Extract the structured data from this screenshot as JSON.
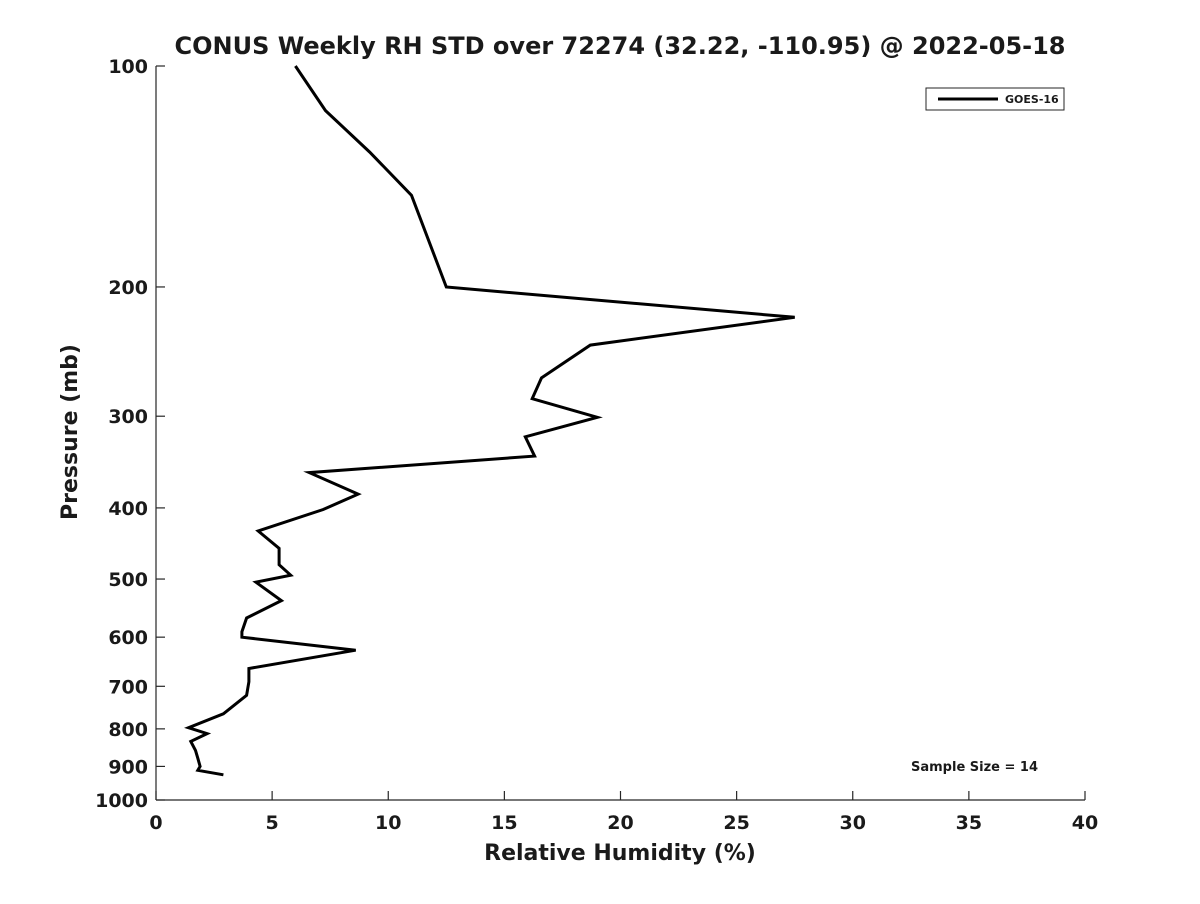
{
  "chart_data": {
    "type": "line",
    "title": "CONUS Weekly RH STD over 72274 (32.22, -110.95) @ 2022-05-18",
    "xlabel": "Relative Humidity (%)",
    "ylabel": "Pressure (mb)",
    "xlim": [
      0,
      40
    ],
    "ylim": [
      100,
      1000
    ],
    "y_scale": "log",
    "y_inverted": true,
    "x_ticks": [
      0,
      5,
      10,
      15,
      20,
      25,
      30,
      35,
      40
    ],
    "y_ticks": [
      100,
      200,
      300,
      400,
      500,
      600,
      700,
      800,
      900,
      1000
    ],
    "grid": false,
    "legend_position": "top-right",
    "annotation": "Sample Size = 14",
    "series": [
      {
        "name": "GOES-16",
        "color": "#000000",
        "x": [
          6.0,
          7.3,
          9.2,
          11.0,
          12.5,
          27.5,
          18.7,
          16.6,
          16.2,
          19.0,
          15.9,
          16.3,
          6.6,
          8.7,
          7.2,
          4.4,
          5.3,
          5.3,
          5.8,
          4.3,
          5.4,
          3.9,
          3.7,
          3.7,
          8.6,
          4.0,
          4.0,
          3.9,
          2.9,
          1.4,
          2.2,
          1.5,
          1.7,
          1.8,
          1.9,
          1.8,
          2.9
        ],
        "y": [
          100,
          115,
          131,
          150,
          200,
          220,
          240,
          266,
          284,
          301,
          320,
          340,
          358,
          383,
          402,
          430,
          454,
          478,
          494,
          505,
          535,
          565,
          590,
          600,
          625,
          662,
          690,
          720,
          763,
          797,
          812,
          832,
          856,
          877,
          900,
          911,
          924
        ]
      }
    ]
  }
}
